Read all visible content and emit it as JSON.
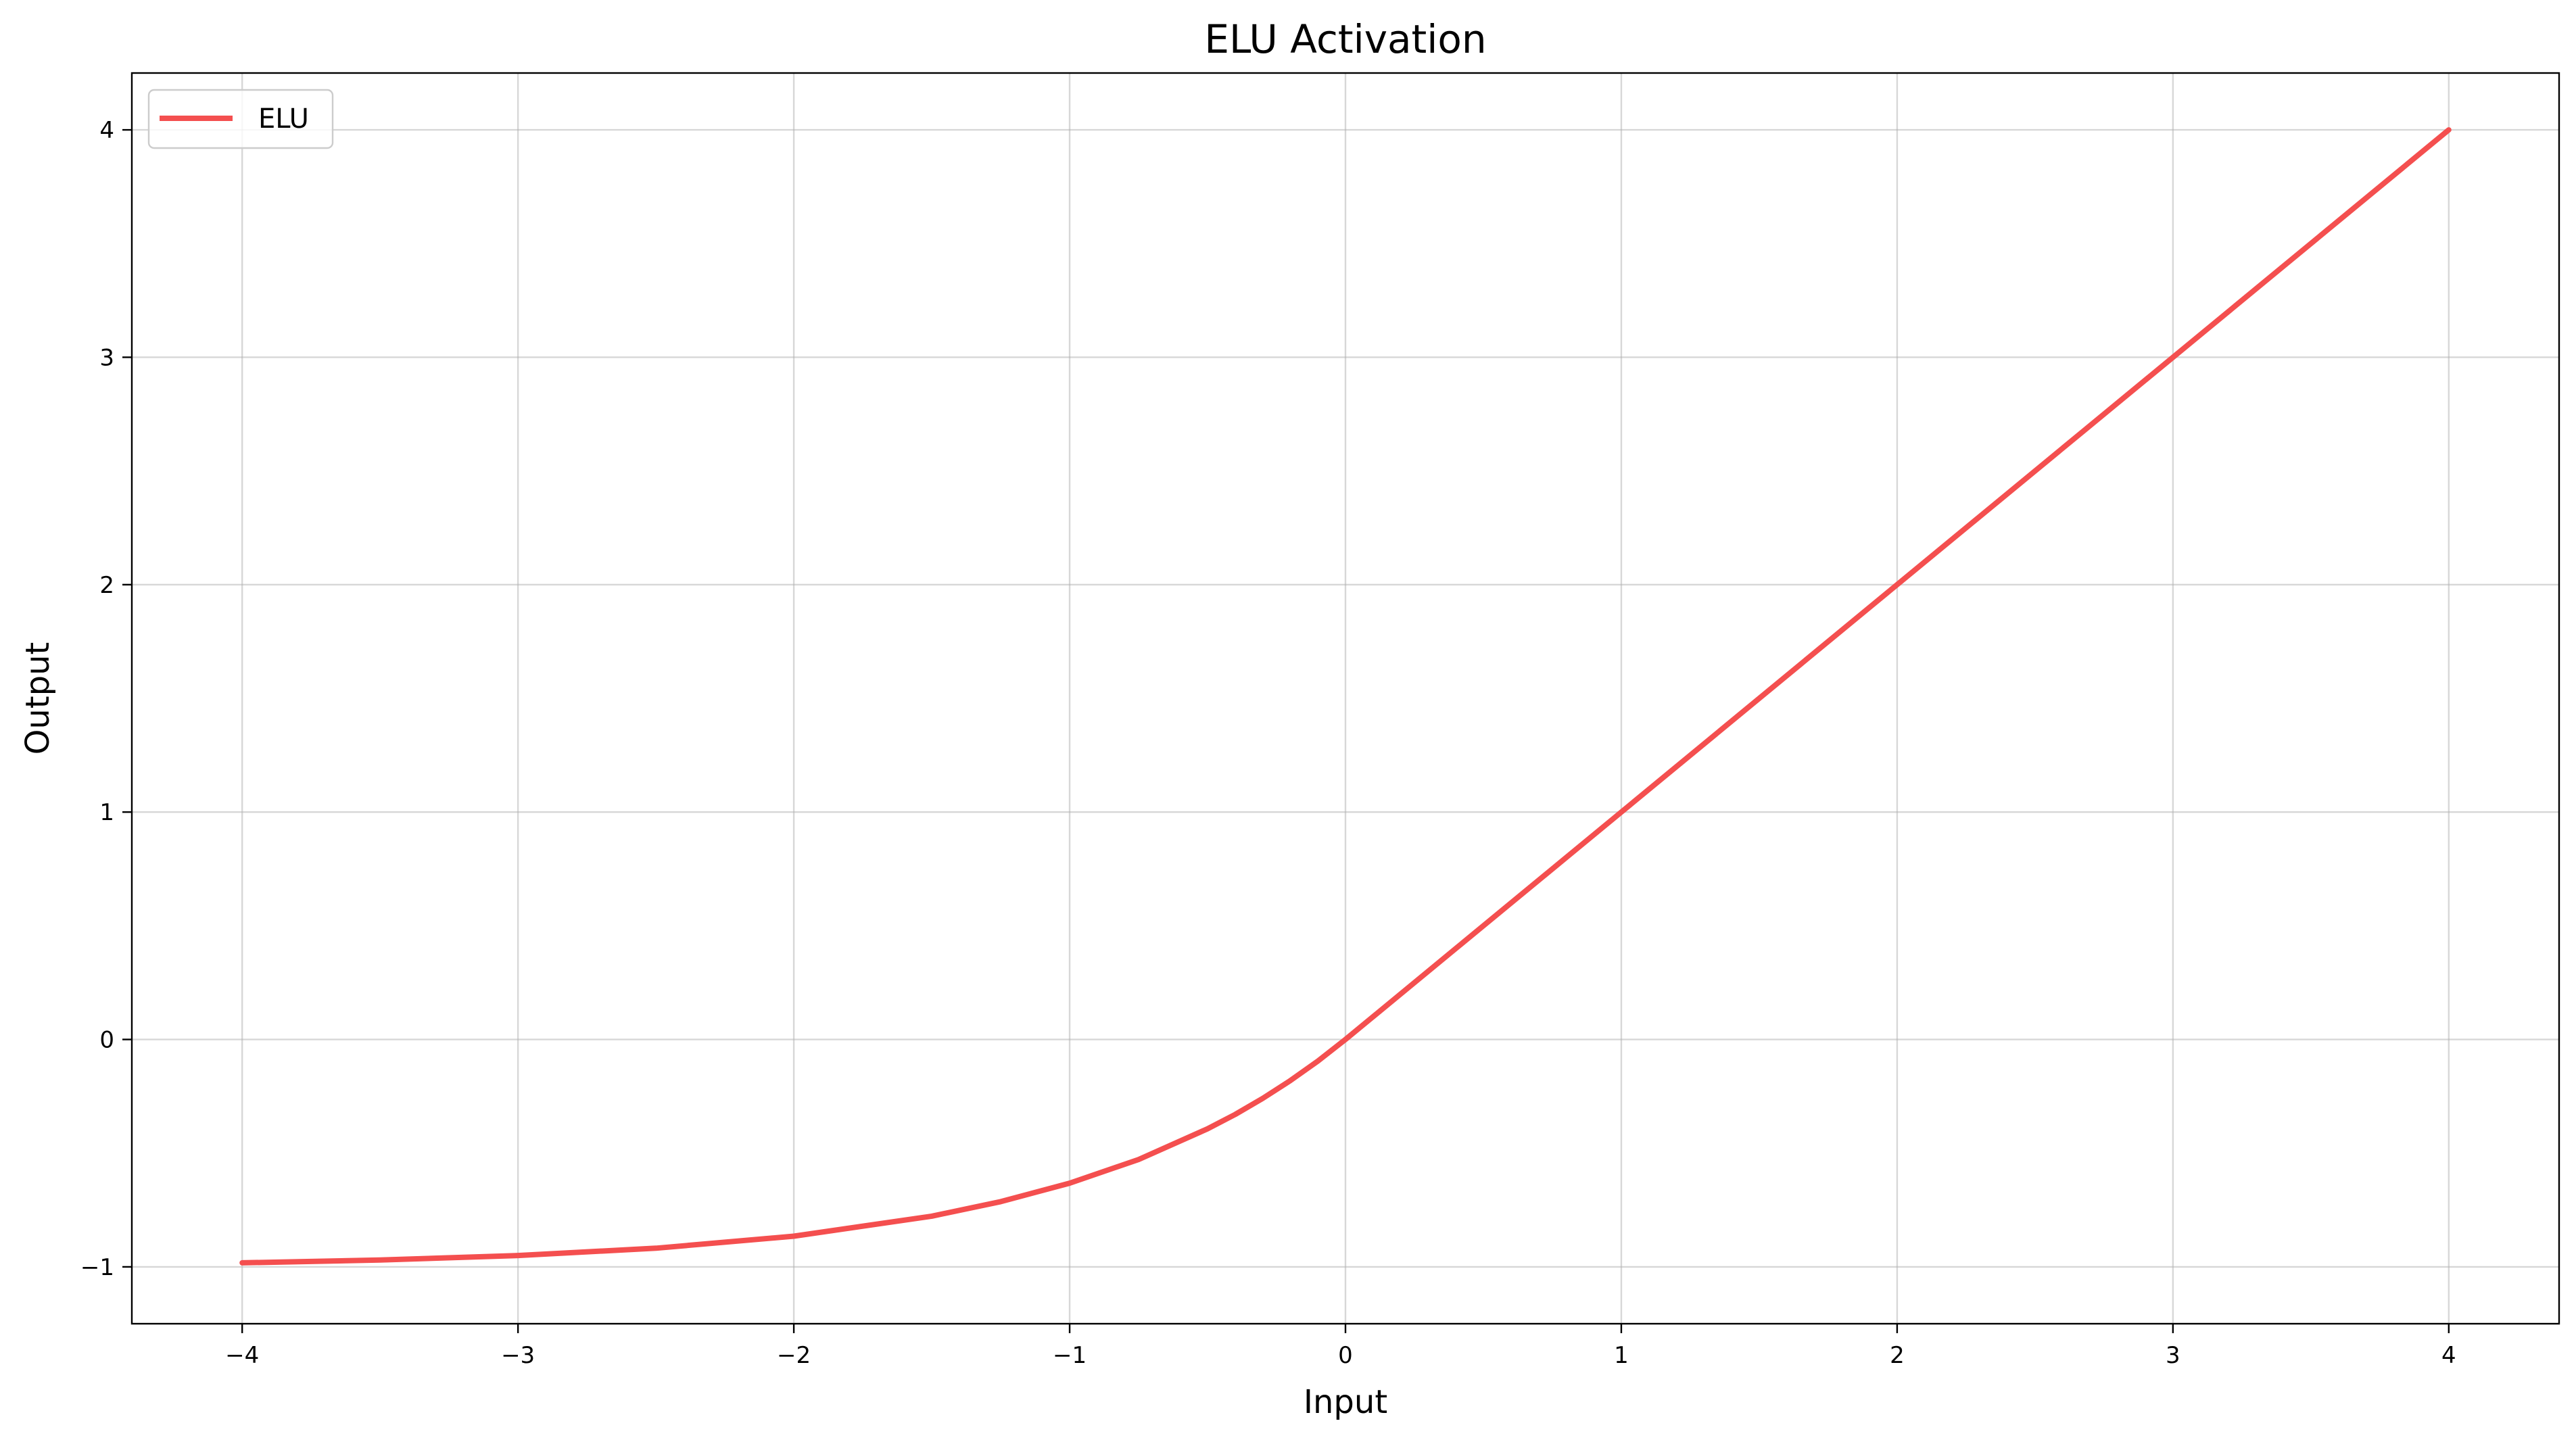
{
  "chart_data": {
    "type": "line",
    "title": "ELU Activation",
    "xlabel": "Input",
    "ylabel": "Output",
    "xlim": [
      -4.4,
      4.4
    ],
    "ylim": [
      -1.25,
      4.25
    ],
    "xticks": [
      -4,
      -3,
      -2,
      -1,
      0,
      1,
      2,
      3,
      4
    ],
    "yticks": [
      -1,
      0,
      1,
      2,
      3,
      4
    ],
    "xtick_labels": [
      "−4",
      "−3",
      "−2",
      "−1",
      "0",
      "1",
      "2",
      "3",
      "4"
    ],
    "ytick_labels": [
      "−1",
      "0",
      "1",
      "2",
      "3",
      "4"
    ],
    "grid": true,
    "legend_position": "upper-left",
    "series": [
      {
        "name": "ELU",
        "color": "#f44f4f",
        "x": [
          -4.0,
          -3.5,
          -3.0,
          -2.5,
          -2.0,
          -1.5,
          -1.25,
          -1.0,
          -0.75,
          -0.5,
          -0.4,
          -0.3,
          -0.2,
          -0.1,
          0.0,
          1.0,
          2.0,
          3.0,
          4.0
        ],
        "y": [
          -0.982,
          -0.97,
          -0.95,
          -0.918,
          -0.865,
          -0.777,
          -0.713,
          -0.632,
          -0.528,
          -0.393,
          -0.33,
          -0.259,
          -0.181,
          -0.095,
          0.0,
          1.0,
          2.0,
          3.0,
          4.0
        ]
      }
    ]
  }
}
